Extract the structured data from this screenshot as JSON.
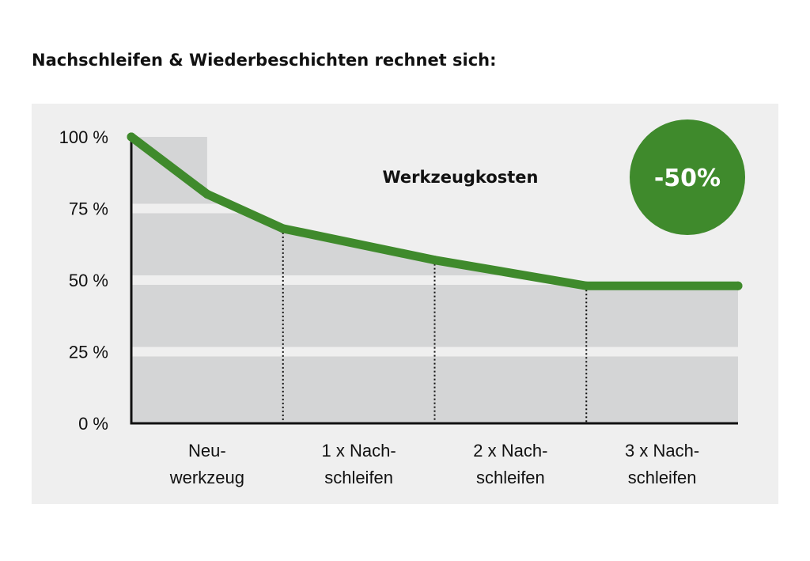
{
  "title": "Nachschleifen & Wiederbeschichten rechnet sich:",
  "chart_data": {
    "type": "line",
    "title": "Nachschleifen & Wiederbeschichten rechnet sich:",
    "categories": [
      [
        "Neu-",
        "werkzeug"
      ],
      [
        "1 x Nach-",
        "schleifen"
      ],
      [
        "2 x Nach-",
        "schleifen"
      ],
      [
        "3 x Nach-",
        "schleifen"
      ]
    ],
    "x": [
      0,
      0.5,
      1,
      2,
      3,
      4
    ],
    "series": [
      {
        "name": "Werkzeugkosten",
        "values": [
          100,
          80,
          68,
          57,
          48,
          48
        ],
        "color": "#3f8a2c"
      }
    ],
    "yticks": [
      "0 %",
      "25 %",
      "50 %",
      "75 %",
      "100 %"
    ],
    "ytick_values": [
      0,
      25,
      50,
      75,
      100
    ],
    "ylim": [
      0,
      100
    ],
    "xlabel": "",
    "ylabel": "",
    "badge": {
      "text": "-50%",
      "color": "#3f8a2c"
    },
    "band_colors": [
      "#d4d5d6",
      "#efefef"
    ]
  }
}
